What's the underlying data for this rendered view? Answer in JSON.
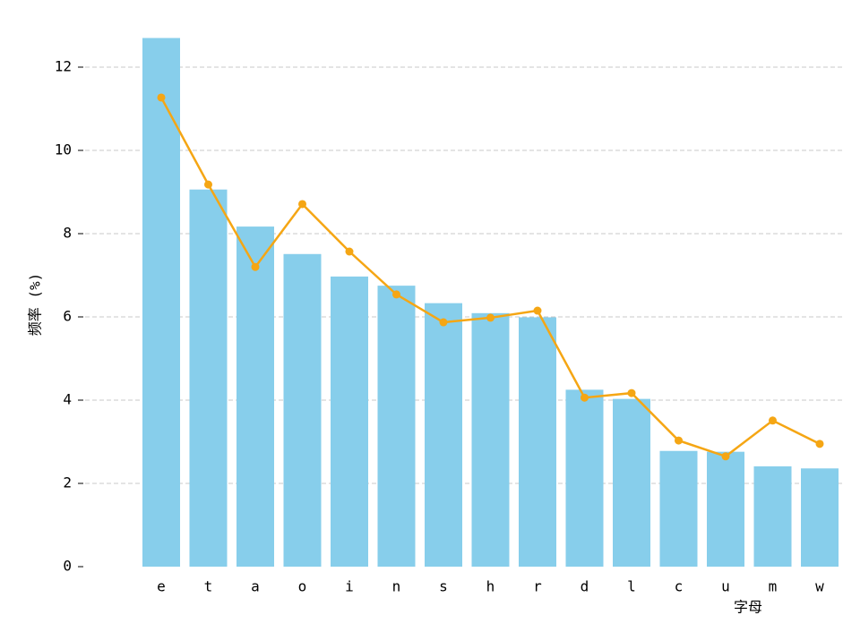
{
  "chart_data": {
    "type": "bar_line",
    "xlabel": "字母",
    "ylabel": "频率 (%)",
    "categories": [
      "e",
      "t",
      "a",
      "o",
      "i",
      "n",
      "s",
      "h",
      "r",
      "d",
      "l",
      "c",
      "u",
      "m",
      "w"
    ],
    "series": [
      {
        "type": "bar",
        "color": "#87ceeb",
        "values": [
          12.7,
          9.06,
          8.17,
          7.51,
          6.97,
          6.75,
          6.33,
          6.09,
          5.99,
          4.25,
          4.03,
          2.78,
          2.76,
          2.41,
          2.36
        ]
      },
      {
        "type": "line",
        "color": "#f5a614",
        "values": [
          11.27,
          9.18,
          7.2,
          8.71,
          7.57,
          6.54,
          5.87,
          5.98,
          6.15,
          4.06,
          4.17,
          3.03,
          2.65,
          3.51,
          2.95
        ]
      }
    ],
    "ylim": [
      0,
      12.8
    ],
    "yticks": [
      0,
      2,
      4,
      6,
      8,
      10,
      12
    ],
    "grid": true
  }
}
